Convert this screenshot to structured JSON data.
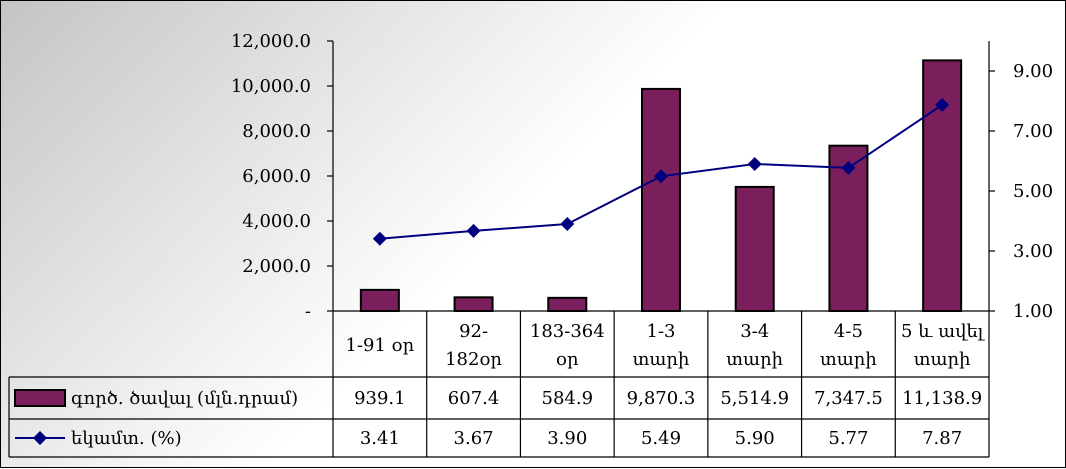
{
  "chart_data": {
    "type": "bar",
    "title": "",
    "categories": [
      [
        "1-91 օր"
      ],
      [
        "92-",
        "182օր"
      ],
      [
        "183-364",
        "օր"
      ],
      [
        "1-3",
        "տարի"
      ],
      [
        "3-4",
        "տարի"
      ],
      [
        "4-5",
        "տարի"
      ],
      [
        "5 և ավել",
        "տարի"
      ]
    ],
    "series": [
      {
        "name": "գործ. ծավալ (մլն.դրամ)",
        "type": "bar",
        "axis": "left",
        "color": "#7b1f5c",
        "values": [
          939.1,
          607.4,
          584.9,
          9870.3,
          5514.9,
          7347.5,
          11138.9
        ],
        "labels": [
          "939.1",
          "607.4",
          "584.9",
          "9,870.3",
          "5,514.9",
          "7,347.5",
          "11,138.9"
        ]
      },
      {
        "name": "եկամտ. (%)",
        "type": "line",
        "axis": "right",
        "color": "#00007f",
        "values": [
          3.41,
          3.67,
          3.9,
          5.49,
          5.9,
          5.77,
          7.87
        ],
        "labels": [
          "3.41",
          "3.67",
          "3.90",
          "5.49",
          "5.90",
          "5.77",
          "7.87"
        ]
      }
    ],
    "left_axis": {
      "ylim": [
        0,
        12000
      ],
      "ticks": [
        0,
        2000,
        4000,
        6000,
        8000,
        10000,
        12000
      ],
      "tick_labels": [
        "-",
        "2,000.0",
        "4,000.0",
        "6,000.0",
        "8,000.0",
        "10,000.0",
        "12,000.0"
      ]
    },
    "right_axis": {
      "ylim": [
        1.0,
        10.0
      ],
      "ticks": [
        1.0,
        3.0,
        5.0,
        7.0,
        9.0
      ],
      "tick_labels": [
        "1.00",
        "3.00",
        "5.00",
        "7.00",
        "9.00"
      ]
    },
    "grid": false,
    "legend": "data-table"
  }
}
